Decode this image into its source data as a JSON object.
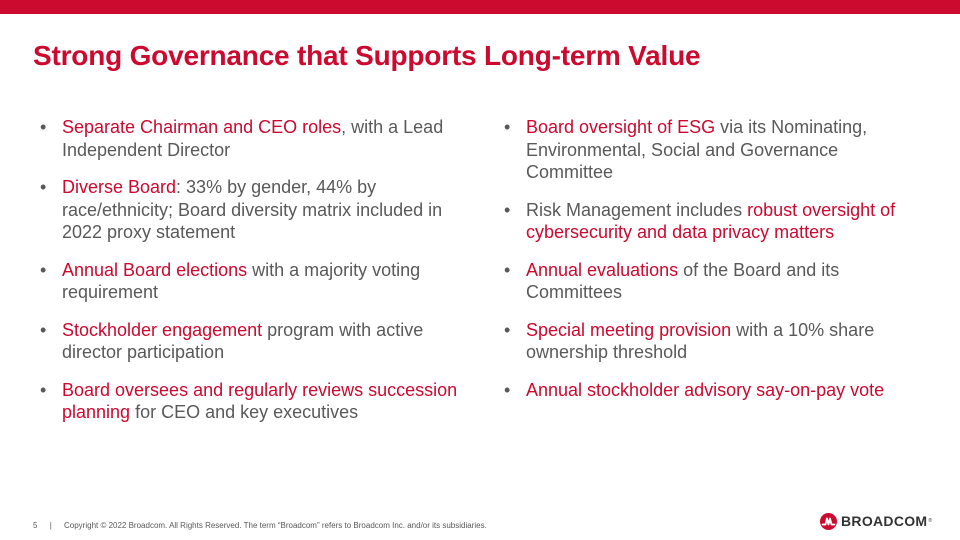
{
  "brand": {
    "accent": "#cc092f",
    "text": "#595959"
  },
  "title": "Strong Governance that Supports Long-term Value",
  "left_column": [
    {
      "hl": "Separate Chairman and CEO roles",
      "rest": ", with a Lead Independent Director"
    },
    {
      "hl": "Diverse Board",
      "rest": ": 33% by gender, 44% by race/ethnicity; Board diversity matrix included in 2022 proxy statement"
    },
    {
      "hl": "Annual Board elections",
      "rest": " with a majority voting requirement"
    },
    {
      "hl": "Stockholder engagement",
      "rest": " program with active director participation"
    },
    {
      "hl": "Board oversees and regularly reviews succession planning",
      "rest": " for CEO and key executives"
    }
  ],
  "right_column": [
    {
      "pre": "",
      "hl": "Board oversight of ESG",
      "rest": " via its Nominating, Environmental, Social and Governance Committee"
    },
    {
      "pre": "Risk Management includes ",
      "hl": "robust oversight of cybersecurity and data privacy matters",
      "rest": ""
    },
    {
      "pre": "",
      "hl": "Annual evaluations",
      "rest": " of the Board and its Committees"
    },
    {
      "pre": "",
      "hl": "Special meeting provision",
      "rest": " with a 10% share ownership threshold"
    },
    {
      "pre": "",
      "hl": "Annual stockholder advisory say-on-pay vote",
      "rest": ""
    }
  ],
  "bullet_char": "•",
  "footer": {
    "page_number": "5",
    "separator": "|",
    "copyright": "Copyright © 2022 Broadcom.  All Rights Reserved. The term “Broadcom” refers to Broadcom Inc. and/or its subsidiaries."
  },
  "logo": {
    "text": "BROADCOM",
    "tm": "®",
    "icon": "broadcom-logo-icon"
  }
}
